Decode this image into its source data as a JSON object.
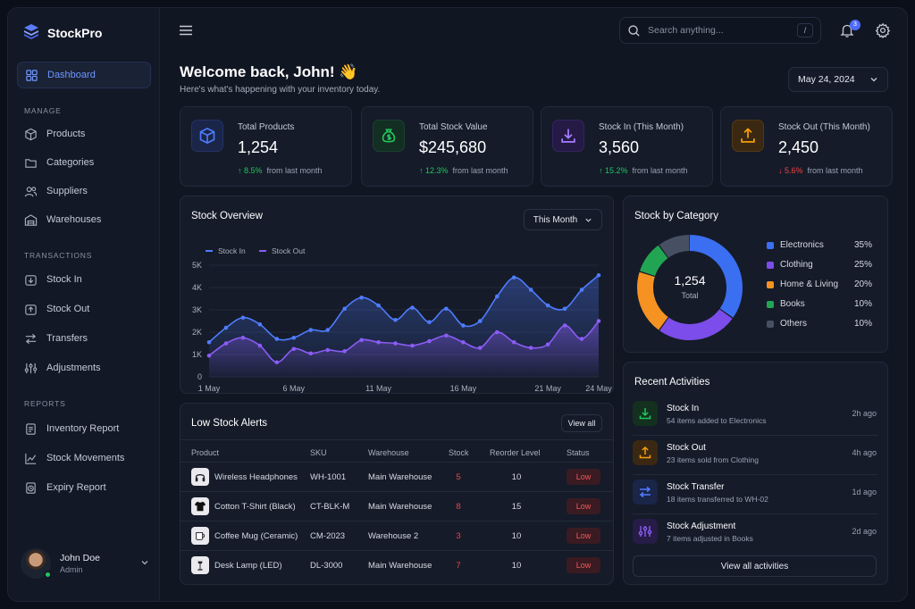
{
  "app": {
    "name": "StockPro"
  },
  "sidebar": {
    "dashboard": "Dashboard",
    "manage_label": "MANAGE",
    "manage": [
      "Products",
      "Categories",
      "Suppliers",
      "Warehouses"
    ],
    "transactions_label": "TRANSACTIONS",
    "transactions": [
      "Stock In",
      "Stock Out",
      "Transfers",
      "Adjustments"
    ],
    "reports_label": "REPORTS",
    "reports": [
      "Inventory Report",
      "Stock Movements",
      "Expiry Report"
    ],
    "user": {
      "name": "John Doe",
      "role": "Admin"
    }
  },
  "header": {
    "search_placeholder": "Search anything...",
    "search_shortcut": "/",
    "notifications_count": "3",
    "welcome": "Welcome back, John! 👋",
    "subtitle": "Here's what's happening with your inventory today.",
    "date": "May 24, 2024"
  },
  "stats": [
    {
      "label": "Total Products",
      "value": "1,254",
      "change": "↑ 8.5%",
      "suffix": "from last month",
      "direction": "up",
      "icon": "box-icon",
      "color": "#4f7cff"
    },
    {
      "label": "Total Stock Value",
      "value": "$245,680",
      "change": "↑ 12.3%",
      "suffix": "from last month",
      "direction": "up",
      "icon": "money-bag-icon",
      "color": "#22c55e"
    },
    {
      "label": "Stock In (This Month)",
      "value": "3,560",
      "change": "↑ 15.2%",
      "suffix": "from last month",
      "direction": "up",
      "icon": "download-icon",
      "color": "#8b5cf6"
    },
    {
      "label": "Stock Out (This Month)",
      "value": "2,450",
      "change": "↓ 5.6%",
      "suffix": "from last month",
      "direction": "down",
      "icon": "upload-icon",
      "color": "#f59e0b"
    }
  ],
  "overview": {
    "title": "Stock Overview",
    "period": "This Month",
    "legend": [
      "Stock In",
      "Stock Out"
    ],
    "yticks": [
      "5K",
      "4K",
      "3K",
      "2K",
      "1K",
      "0"
    ],
    "xticks": [
      "1 May",
      "6 May",
      "11 May",
      "16 May",
      "21 May",
      "24 May"
    ]
  },
  "chart_data": {
    "type": "area",
    "title": "Stock Overview",
    "xlabel": "",
    "ylabel": "",
    "ylim": [
      0,
      5000
    ],
    "x": [
      "1 May",
      "2 May",
      "3 May",
      "4 May",
      "5 May",
      "6 May",
      "7 May",
      "8 May",
      "9 May",
      "10 May",
      "11 May",
      "12 May",
      "13 May",
      "14 May",
      "15 May",
      "16 May",
      "17 May",
      "18 May",
      "19 May",
      "20 May",
      "21 May",
      "22 May",
      "23 May",
      "24 May"
    ],
    "series": [
      {
        "name": "Stock In",
        "color": "#4f7cff",
        "values": [
          1550,
          2200,
          2650,
          2350,
          1700,
          1750,
          2100,
          2100,
          3050,
          3550,
          3200,
          2550,
          3100,
          2450,
          3050,
          2300,
          2500,
          3600,
          4450,
          3900,
          3200,
          3050,
          3900,
          4550
        ]
      },
      {
        "name": "Stock Out",
        "color": "#8b5cf6",
        "values": [
          950,
          1500,
          1750,
          1400,
          650,
          1250,
          1050,
          1200,
          1150,
          1650,
          1550,
          1500,
          1400,
          1600,
          1850,
          1550,
          1300,
          2000,
          1550,
          1300,
          1450,
          2300,
          1700,
          2500
        ]
      }
    ]
  },
  "category": {
    "title": "Stock by Category",
    "total": "1,254",
    "total_label": "Total",
    "items": [
      {
        "name": "Electronics",
        "pct": "35%",
        "value": 35,
        "color": "#3b6ff2"
      },
      {
        "name": "Clothing",
        "pct": "25%",
        "value": 25,
        "color": "#7c4dea"
      },
      {
        "name": "Home & Living",
        "pct": "20%",
        "value": 20,
        "color": "#f59222"
      },
      {
        "name": "Books",
        "pct": "10%",
        "value": 10,
        "color": "#22a553"
      },
      {
        "name": "Others",
        "pct": "10%",
        "value": 10,
        "color": "#475063"
      }
    ]
  },
  "alerts": {
    "title": "Low Stock Alerts",
    "view_all": "View all",
    "columns": [
      "Product",
      "SKU",
      "Warehouse",
      "Stock",
      "Reorder Level",
      "Status"
    ],
    "rows": [
      {
        "product": "Wireless Headphones",
        "sku": "WH-1001",
        "warehouse": "Main Warehouse",
        "stock": "5",
        "reorder": "10",
        "status": "Low",
        "icon": "headphones-icon"
      },
      {
        "product": "Cotton T-Shirt (Black)",
        "sku": "CT-BLK-M",
        "warehouse": "Main Warehouse",
        "stock": "8",
        "reorder": "15",
        "status": "Low",
        "icon": "tshirt-icon"
      },
      {
        "product": "Coffee Mug (Ceramic)",
        "sku": "CM-2023",
        "warehouse": "Warehouse 2",
        "stock": "3",
        "reorder": "10",
        "status": "Low",
        "icon": "mug-icon"
      },
      {
        "product": "Desk Lamp (LED)",
        "sku": "DL-3000",
        "warehouse": "Main Warehouse",
        "stock": "7",
        "reorder": "10",
        "status": "Low",
        "icon": "lamp-icon"
      }
    ]
  },
  "activities": {
    "title": "Recent Activities",
    "view_all": "View all activities",
    "items": [
      {
        "title": "Stock In",
        "desc": "54 items added to Electronics",
        "time": "2h ago",
        "icon": "download-icon",
        "color": "#22c55e"
      },
      {
        "title": "Stock Out",
        "desc": "23 items sold from Clothing",
        "time": "4h ago",
        "icon": "upload-icon",
        "color": "#f59e0b"
      },
      {
        "title": "Stock Transfer",
        "desc": "18 items transferred to WH-02",
        "time": "1d ago",
        "icon": "transfer-icon",
        "color": "#4f7cff"
      },
      {
        "title": "Stock Adjustment",
        "desc": "7 items adjusted in Books",
        "time": "2d ago",
        "icon": "adjust-icon",
        "color": "#8b5cf6"
      }
    ]
  }
}
